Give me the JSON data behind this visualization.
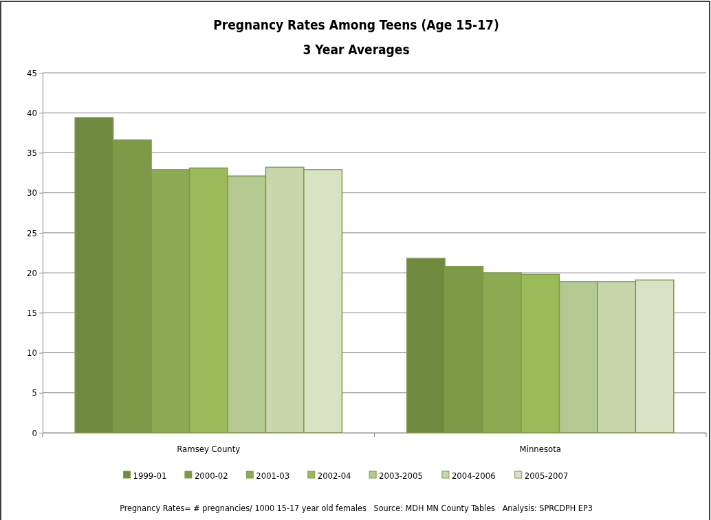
{
  "chart_data": {
    "type": "bar",
    "title": "Pregnancy Rates Among Teens (Age 15-17)",
    "subtitle": "3 Year Averages",
    "categories": [
      "Ramsey County",
      "Minnesota"
    ],
    "series": [
      {
        "name": "1999-01",
        "color": "#6f8a3f",
        "values": [
          39.4,
          21.8
        ]
      },
      {
        "name": "2000-02",
        "color": "#7e9a48",
        "values": [
          36.6,
          20.8
        ]
      },
      {
        "name": "2001-03",
        "color": "#8dab52",
        "values": [
          32.9,
          20.0
        ]
      },
      {
        "name": "2002-04",
        "color": "#9bbb59",
        "values": [
          33.1,
          19.8
        ]
      },
      {
        "name": "2003-2005",
        "color": "#b3c991",
        "values": [
          32.1,
          18.9
        ]
      },
      {
        "name": "2004-2006",
        "color": "#c7d7ab",
        "values": [
          33.2,
          18.9
        ]
      },
      {
        "name": "2005-2007",
        "color": "#d9e3c4",
        "values": [
          32.9,
          19.1
        ]
      }
    ],
    "ylim": [
      0,
      45
    ],
    "yticks": [
      0,
      5,
      10,
      15,
      20,
      25,
      30,
      35,
      40,
      45
    ],
    "grid": "y",
    "legend": "bottom",
    "annotations": [
      "Pregnancy Rates= # pregnancies/ 1000 15-17 year old females   Source: MDH MN County Tables   Analysis: SPRCDPH EP3"
    ]
  }
}
